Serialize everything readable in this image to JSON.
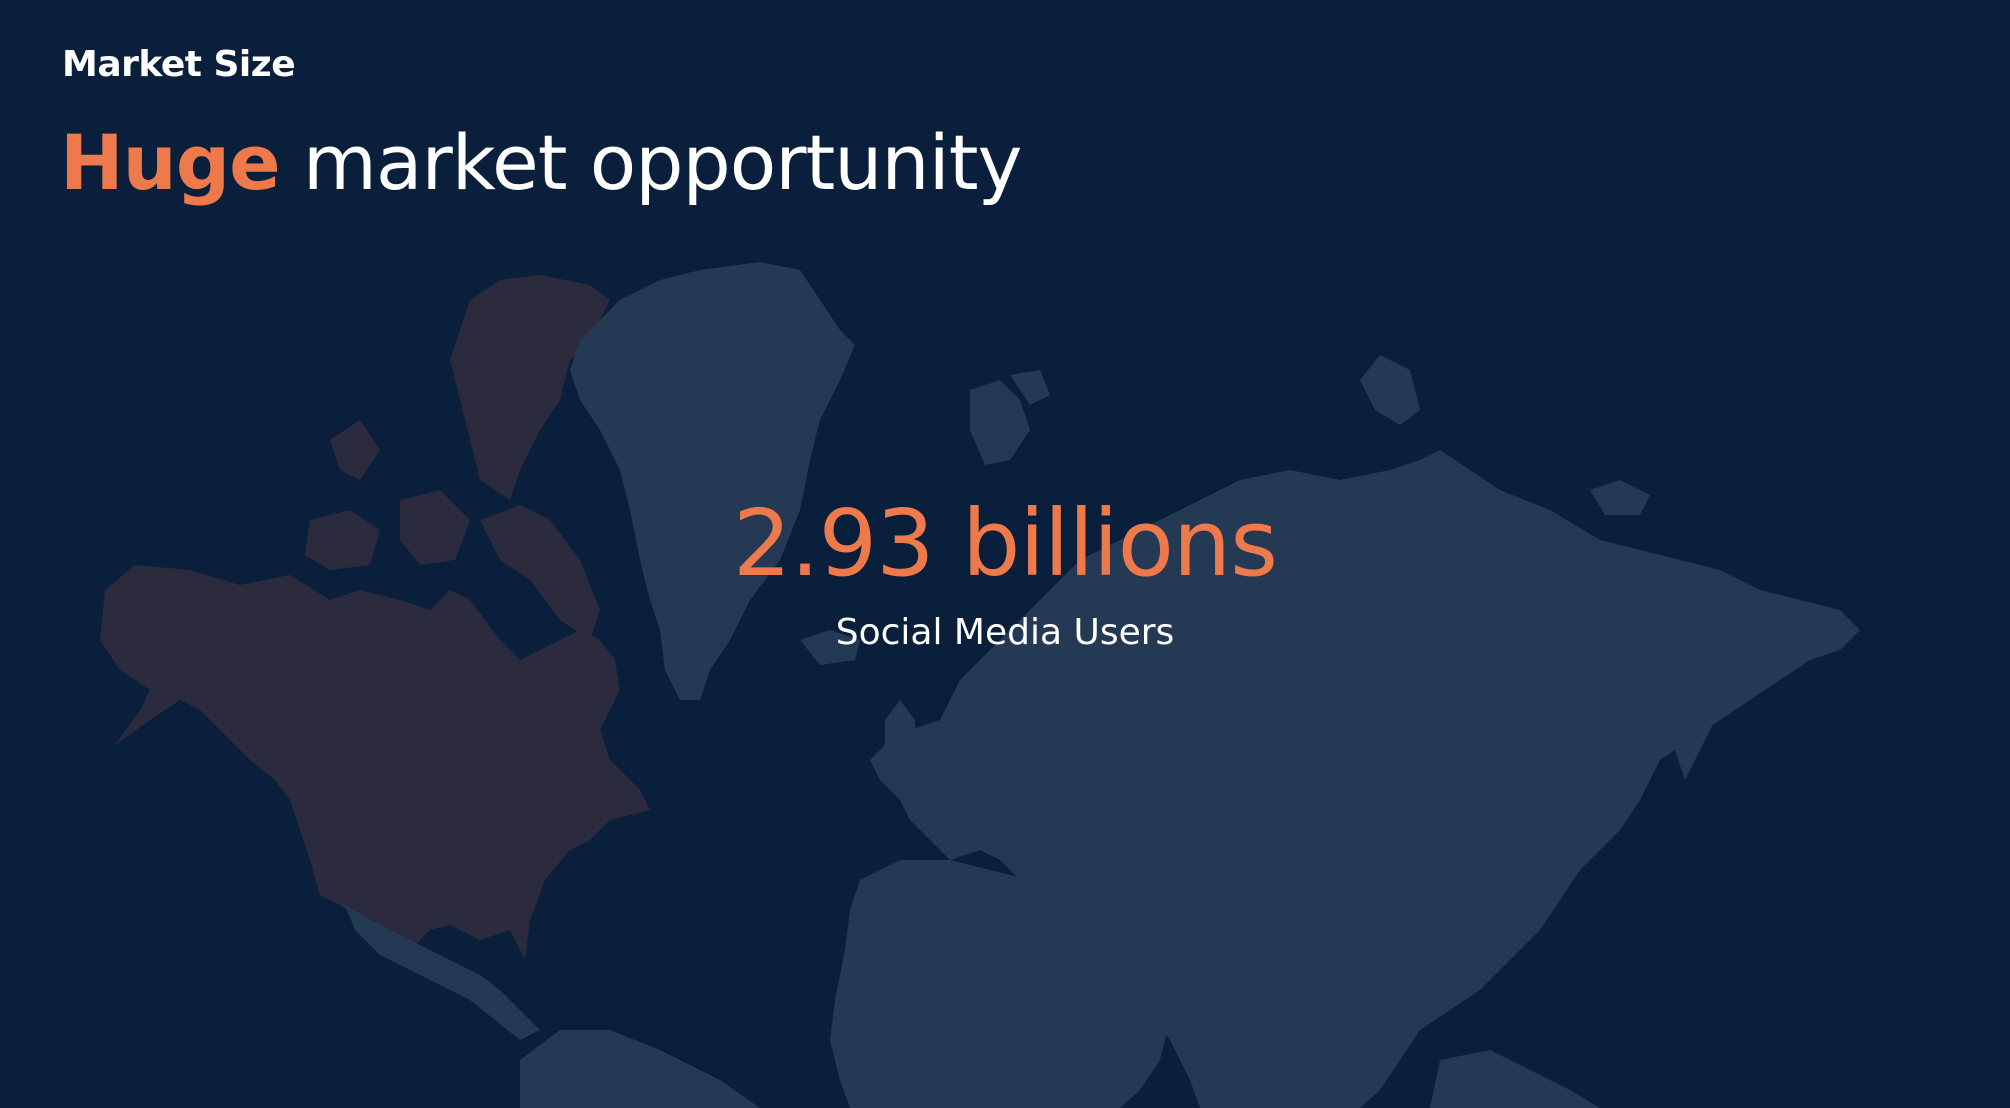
{
  "header": {
    "kicker": "Market Size",
    "headline_accent": "Huge",
    "headline_rest": "market opportunity"
  },
  "stat": {
    "value": "2.93 billions",
    "label": "Social Media Users"
  },
  "colors": {
    "background": "#0a1f3b",
    "accent": "#ee7a4c",
    "text": "#ffffff",
    "land": "#243953",
    "land_highlight": "#2c2a3d"
  }
}
